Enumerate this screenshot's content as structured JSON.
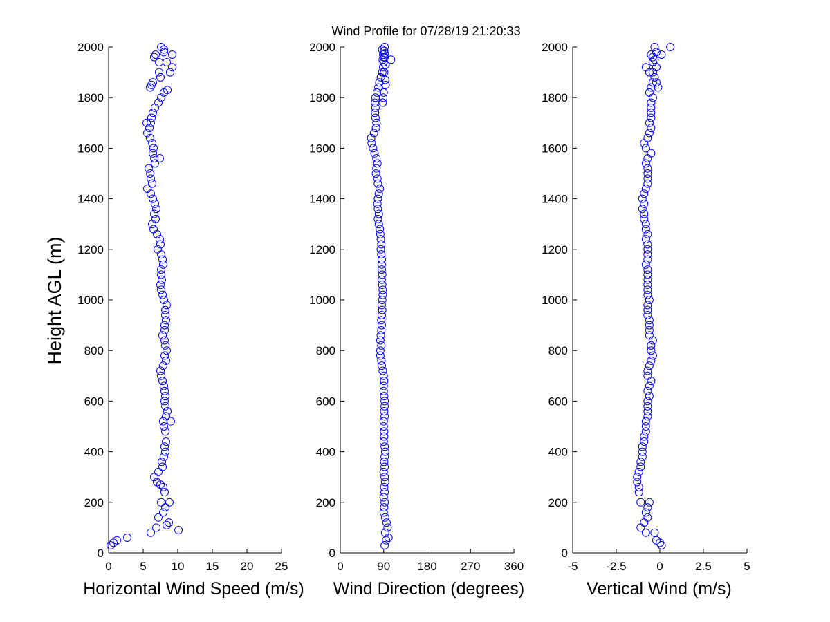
{
  "figure_title": "Wind Profile for  07/28/19 21:20:33",
  "shared_ylabel": "Height AGL (m)",
  "colors": {
    "marker": "#0000ff",
    "axis": "#000000",
    "background": "#ffffff"
  },
  "chart_data": [
    {
      "type": "scatter",
      "title": "",
      "xlabel": "Horizontal Wind Speed (m/s)",
      "ylabel": "Height AGL (m)",
      "xlim": [
        0,
        25
      ],
      "ylim": [
        0,
        2000
      ],
      "xticks": [
        "0",
        "5",
        "10",
        "15",
        "20",
        "25"
      ],
      "yticks": [
        "0",
        "200",
        "400",
        "600",
        "800",
        "1000",
        "1200",
        "1400",
        "1600",
        "1800",
        "2000"
      ],
      "grid": false,
      "marker": "open-circle",
      "series": [
        {
          "x": [
            0.3,
            0.7,
            1.2,
            2.7,
            6.1,
            6.9,
            8.4,
            10.1,
            7.2,
            8.7,
            8.2,
            7.6,
            7.9,
            8.1,
            8.8,
            7.9,
            7.5,
            7.0,
            6.6,
            7.2,
            7.8,
            7.7,
            8.0,
            8.2,
            8.1,
            8.3,
            8.2,
            8.0,
            7.9,
            8.3,
            9.0,
            8.5,
            8.2,
            8.1,
            8.2,
            8.1,
            8.0,
            7.8,
            7.6,
            7.5,
            7.9,
            8.3,
            8.1,
            8.4,
            8.2,
            8.1,
            7.8,
            8.1,
            8.1,
            8.3,
            8.2,
            8.2,
            8.4,
            8.0,
            7.8,
            7.6,
            7.5,
            7.7,
            7.6,
            7.6,
            7.9,
            7.8,
            7.6,
            7.1,
            7.5,
            7.4,
            7.0,
            6.5,
            6.3,
            6.8,
            6.6,
            6.9,
            6.7,
            6.4,
            6.1,
            5.6,
            6.3,
            6.1,
            6.0,
            5.8,
            6.7,
            7.4,
            6.6,
            6.4,
            6.5,
            6.3,
            6.0,
            5.6,
            5.9,
            6.1,
            5.5,
            6.2,
            6.4,
            6.7,
            7.2,
            7.6,
            8.0,
            8.5,
            6.0,
            6.2,
            6.4,
            7.5,
            8.9,
            9.2,
            7.3,
            8.4,
            6.6,
            7.3,
            8.0,
            9.2,
            8.0,
            7.6,
            6.8
          ],
          "y": [
            30,
            40,
            50,
            60,
            80,
            100,
            110,
            90,
            140,
            120,
            180,
            200,
            160,
            240,
            200,
            260,
            270,
            280,
            300,
            320,
            340,
            360,
            380,
            400,
            420,
            440,
            480,
            500,
            520,
            540,
            520,
            560,
            580,
            600,
            620,
            640,
            660,
            680,
            700,
            720,
            740,
            760,
            780,
            800,
            820,
            840,
            860,
            880,
            900,
            920,
            940,
            960,
            980,
            1000,
            1020,
            1040,
            1060,
            1080,
            1100,
            1120,
            1140,
            1160,
            1180,
            1200,
            1220,
            1240,
            1260,
            1280,
            1300,
            1320,
            1340,
            1360,
            1380,
            1400,
            1420,
            1440,
            1460,
            1480,
            1500,
            1520,
            1540,
            1560,
            1560,
            1580,
            1600,
            1620,
            1640,
            1660,
            1680,
            1700,
            1700,
            1720,
            1740,
            1760,
            1780,
            1800,
            1820,
            1830,
            1840,
            1850,
            1860,
            1880,
            1900,
            1920,
            1900,
            1940,
            1960,
            1940,
            1980,
            1970,
            1990,
            2000,
            1970
          ]
        }
      ]
    },
    {
      "type": "scatter",
      "title": "",
      "xlabel": "Wind Direction (degrees)",
      "ylabel": "",
      "xlim": [
        0,
        360
      ],
      "ylim": [
        0,
        2000
      ],
      "xticks": [
        "0",
        "90",
        "180",
        "270",
        "360"
      ],
      "yticks": [
        "0",
        "200",
        "400",
        "600",
        "800",
        "1000",
        "1200",
        "1400",
        "1600",
        "1800",
        "2000"
      ],
      "grid": false,
      "marker": "open-circle",
      "series": [
        {
          "x": [
            92,
            95,
            100,
            93,
            98,
            96,
            93,
            90,
            91,
            92,
            90,
            92,
            91,
            93,
            92,
            90,
            92,
            91,
            92,
            93,
            92,
            90,
            91,
            91,
            90,
            90,
            92,
            91,
            92,
            92,
            91,
            90,
            90,
            91,
            90,
            88,
            86,
            85,
            83,
            83,
            85,
            83,
            84,
            85,
            86,
            85,
            86,
            87,
            86,
            87,
            88,
            88,
            87,
            86,
            87,
            86,
            86,
            86,
            85,
            84,
            85,
            84,
            83,
            82,
            80,
            78,
            80,
            78,
            77,
            78,
            80,
            82,
            78,
            77,
            74,
            75,
            77,
            75,
            71,
            68,
            65,
            64,
            70,
            74,
            75,
            73,
            72,
            73,
            72,
            73,
            76,
            79,
            81,
            84,
            87,
            89,
            90,
            90,
            88,
            89,
            87,
            92,
            88,
            89,
            90,
            94,
            93,
            105,
            91,
            94,
            92,
            92,
            91
          ],
          "y": [
            30,
            50,
            60,
            80,
            100,
            120,
            140,
            160,
            180,
            200,
            220,
            240,
            260,
            280,
            300,
            320,
            340,
            360,
            380,
            400,
            420,
            440,
            460,
            480,
            500,
            520,
            540,
            560,
            580,
            600,
            620,
            640,
            660,
            680,
            700,
            720,
            740,
            760,
            780,
            800,
            820,
            840,
            860,
            880,
            900,
            920,
            940,
            960,
            980,
            1000,
            1020,
            1040,
            1060,
            1080,
            1100,
            1120,
            1140,
            1160,
            1180,
            1200,
            1220,
            1240,
            1260,
            1280,
            1300,
            1320,
            1340,
            1360,
            1380,
            1400,
            1420,
            1440,
            1460,
            1480,
            1500,
            1520,
            1540,
            1560,
            1580,
            1600,
            1620,
            1640,
            1660,
            1680,
            1700,
            1720,
            1740,
            1760,
            1780,
            1800,
            1820,
            1840,
            1860,
            1880,
            1900,
            1920,
            1940,
            1960,
            1950,
            1970,
            1990,
            2000,
            1780,
            1800,
            1820,
            1850,
            1870,
            1950,
            1900,
            1930,
            1960,
            1975,
            1985
          ]
        }
      ]
    },
    {
      "type": "scatter",
      "title": "",
      "xlabel": "Vertical Wind (m/s)",
      "ylabel": "",
      "xlim": [
        -5,
        5
      ],
      "ylim": [
        0,
        2000
      ],
      "xticks": [
        "-5",
        "-2.5",
        "0",
        "2.5",
        "5"
      ],
      "yticks": [
        "0",
        "200",
        "400",
        "600",
        "800",
        "1000",
        "1200",
        "1400",
        "1600",
        "1800",
        "2000"
      ],
      "grid": false,
      "marker": "open-circle",
      "series": [
        {
          "x": [
            0.1,
            0.0,
            -0.2,
            -0.3,
            -1.1,
            -0.8,
            -0.9,
            -0.7,
            -0.8,
            -0.7,
            -0.6,
            -1.1,
            -1.2,
            -1.2,
            -1.3,
            -1.3,
            -1.2,
            -1.1,
            -1.1,
            -1.0,
            -1.0,
            -1.0,
            -0.9,
            -0.9,
            -0.8,
            -0.8,
            -0.8,
            -0.7,
            -0.7,
            -0.7,
            -0.7,
            -0.6,
            -0.7,
            -0.6,
            -0.5,
            -0.7,
            -0.7,
            -0.6,
            -0.5,
            -0.4,
            -0.5,
            -0.5,
            -0.4,
            -0.6,
            -0.6,
            -0.6,
            -0.6,
            -0.7,
            -0.7,
            -0.7,
            -0.6,
            -0.7,
            -0.7,
            -0.7,
            -0.7,
            -0.7,
            -0.7,
            -0.8,
            -0.7,
            -0.7,
            -0.7,
            -0.7,
            -0.8,
            -0.7,
            -0.8,
            -0.8,
            -0.9,
            -0.9,
            -1.0,
            -0.9,
            -1.0,
            -0.9,
            -0.8,
            -0.7,
            -0.7,
            -0.7,
            -0.7,
            -0.8,
            -0.7,
            -0.5,
            -0.8,
            -0.9,
            -0.7,
            -0.6,
            -0.5,
            -0.6,
            -0.5,
            -0.5,
            -0.5,
            -0.5,
            -0.4,
            -0.6,
            -0.5,
            -0.4,
            -0.3,
            -0.6,
            -0.8,
            -0.4,
            -0.3,
            -0.4,
            -0.5,
            -0.2,
            -0.3,
            -0.1,
            -0.2,
            -0.3,
            -0.4,
            -0.2,
            0.1,
            0.6
          ],
          "y": [
            30,
            40,
            50,
            80,
            100,
            80,
            120,
            140,
            160,
            180,
            200,
            200,
            240,
            260,
            280,
            300,
            320,
            340,
            360,
            380,
            400,
            420,
            440,
            460,
            480,
            500,
            520,
            540,
            560,
            580,
            600,
            620,
            640,
            660,
            680,
            700,
            720,
            740,
            760,
            780,
            800,
            820,
            840,
            860,
            880,
            900,
            920,
            940,
            960,
            980,
            1000,
            1020,
            1040,
            1060,
            1080,
            1100,
            1120,
            1140,
            1160,
            1180,
            1200,
            1220,
            1240,
            1260,
            1280,
            1300,
            1320,
            1340,
            1360,
            1380,
            1400,
            1420,
            1440,
            1460,
            1480,
            1500,
            1520,
            1540,
            1560,
            1580,
            1600,
            1620,
            1640,
            1660,
            1680,
            1700,
            1720,
            1740,
            1760,
            1780,
            1800,
            1820,
            1840,
            1860,
            1880,
            1900,
            1920,
            1940,
            1950,
            1960,
            1970,
            1980,
            2000,
            1840,
            1860,
            1880,
            1900,
            1920,
            1970,
            2000
          ]
        }
      ]
    }
  ]
}
